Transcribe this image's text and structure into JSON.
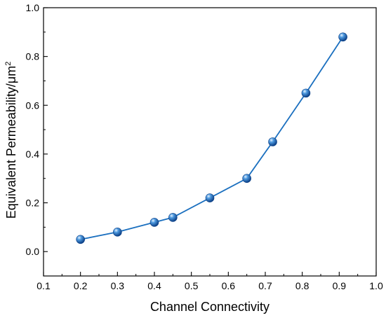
{
  "chart_data": {
    "type": "line",
    "title": "",
    "xlabel": "Channel Connectivity",
    "ylabel": "Equivalent Permeability/μm",
    "ylabel_superscript": "2",
    "xlim": [
      0.1,
      1.0
    ],
    "ylim": [
      -0.1,
      1.0
    ],
    "xticks": [
      "0.1",
      "0.2",
      "0.3",
      "0.4",
      "0.5",
      "0.6",
      "0.7",
      "0.8",
      "0.9",
      "1.0"
    ],
    "yticks": [
      "0.0",
      "0.2",
      "0.4",
      "0.6",
      "0.8",
      "1.0"
    ],
    "grid": false,
    "legend": "none",
    "series": [
      {
        "color": "#1a6fbf",
        "marker": "sphere",
        "x": [
          0.2,
          0.3,
          0.4,
          0.45,
          0.55,
          0.65,
          0.72,
          0.81,
          0.91
        ],
        "y": [
          0.05,
          0.08,
          0.12,
          0.14,
          0.22,
          0.3,
          0.45,
          0.65,
          0.88
        ]
      }
    ]
  }
}
